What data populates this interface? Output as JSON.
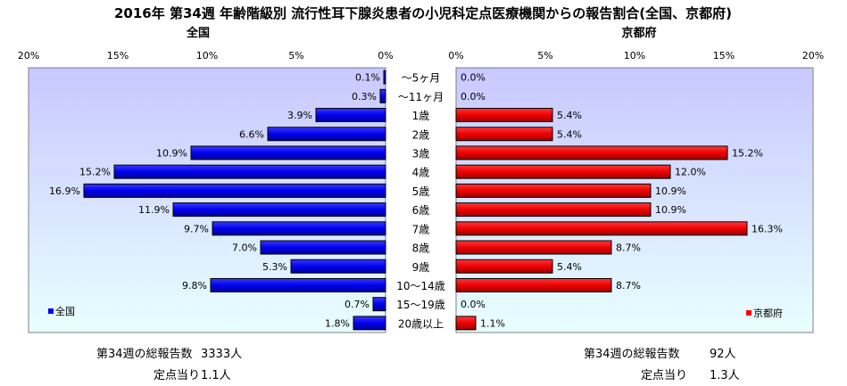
{
  "chart_data": {
    "type": "bar",
    "title": "2016年 第34週 年齢階級別 流行性耳下腺炎患者の小児科定点医療機関からの報告割合(全国、京都府)",
    "categories": [
      "～5ヶ月",
      "～11ヶ月",
      "1歳",
      "2歳",
      "3歳",
      "4歳",
      "5歳",
      "6歳",
      "7歳",
      "8歳",
      "9歳",
      "10～14歳",
      "15～19歳",
      "20歳以上"
    ],
    "xlim": [
      0,
      20
    ],
    "ticks": [
      "20%",
      "15%",
      "10%",
      "5%",
      "0%"
    ],
    "ticks_right": [
      "0%",
      "5%",
      "10%",
      "15%",
      "20%"
    ],
    "series": [
      {
        "name": "全国",
        "values": [
          0.1,
          0.3,
          3.9,
          6.6,
          10.9,
          15.2,
          16.9,
          11.9,
          9.7,
          7.0,
          5.3,
          9.8,
          0.7,
          1.8
        ],
        "labels": [
          "0.1%",
          "0.3%",
          "3.9%",
          "6.6%",
          "10.9%",
          "15.2%",
          "16.9%",
          "11.9%",
          "9.7%",
          "7.0%",
          "5.3%",
          "9.8%",
          "0.7%",
          "1.8%"
        ],
        "color": "#0000ff"
      },
      {
        "name": "京都府",
        "values": [
          0.0,
          0.0,
          5.4,
          5.4,
          15.2,
          12.0,
          10.9,
          10.9,
          16.3,
          8.7,
          5.4,
          8.7,
          0.0,
          1.1
        ],
        "labels": [
          "0.0%",
          "0.0%",
          "5.4%",
          "5.4%",
          "15.2%",
          "12.0%",
          "10.9%",
          "10.9%",
          "16.3%",
          "8.7%",
          "5.4%",
          "8.7%",
          "0.0%",
          "1.1%"
        ],
        "color": "#ff0000"
      }
    ],
    "panel_titles": {
      "left": "全国",
      "right": "京都府"
    },
    "legend": {
      "left": "全国",
      "right": "京都府",
      "placement": "bottom-left / bottom-right"
    },
    "grid": false
  },
  "summary": {
    "left": {
      "total_label": "第34週の総報告数",
      "total_value": "3333人",
      "per_label": "定点当り",
      "per_value": "1.1人"
    },
    "right": {
      "total_label": "第34週の総報告数",
      "total_value": "92人",
      "per_label": "定点当り",
      "per_value": "1.3人"
    }
  },
  "colors": {
    "panel_top": "#c8c8ff",
    "panel_bottom": "#e8ffff",
    "bar_left": "#0000ff",
    "bar_right": "#ff0000"
  }
}
